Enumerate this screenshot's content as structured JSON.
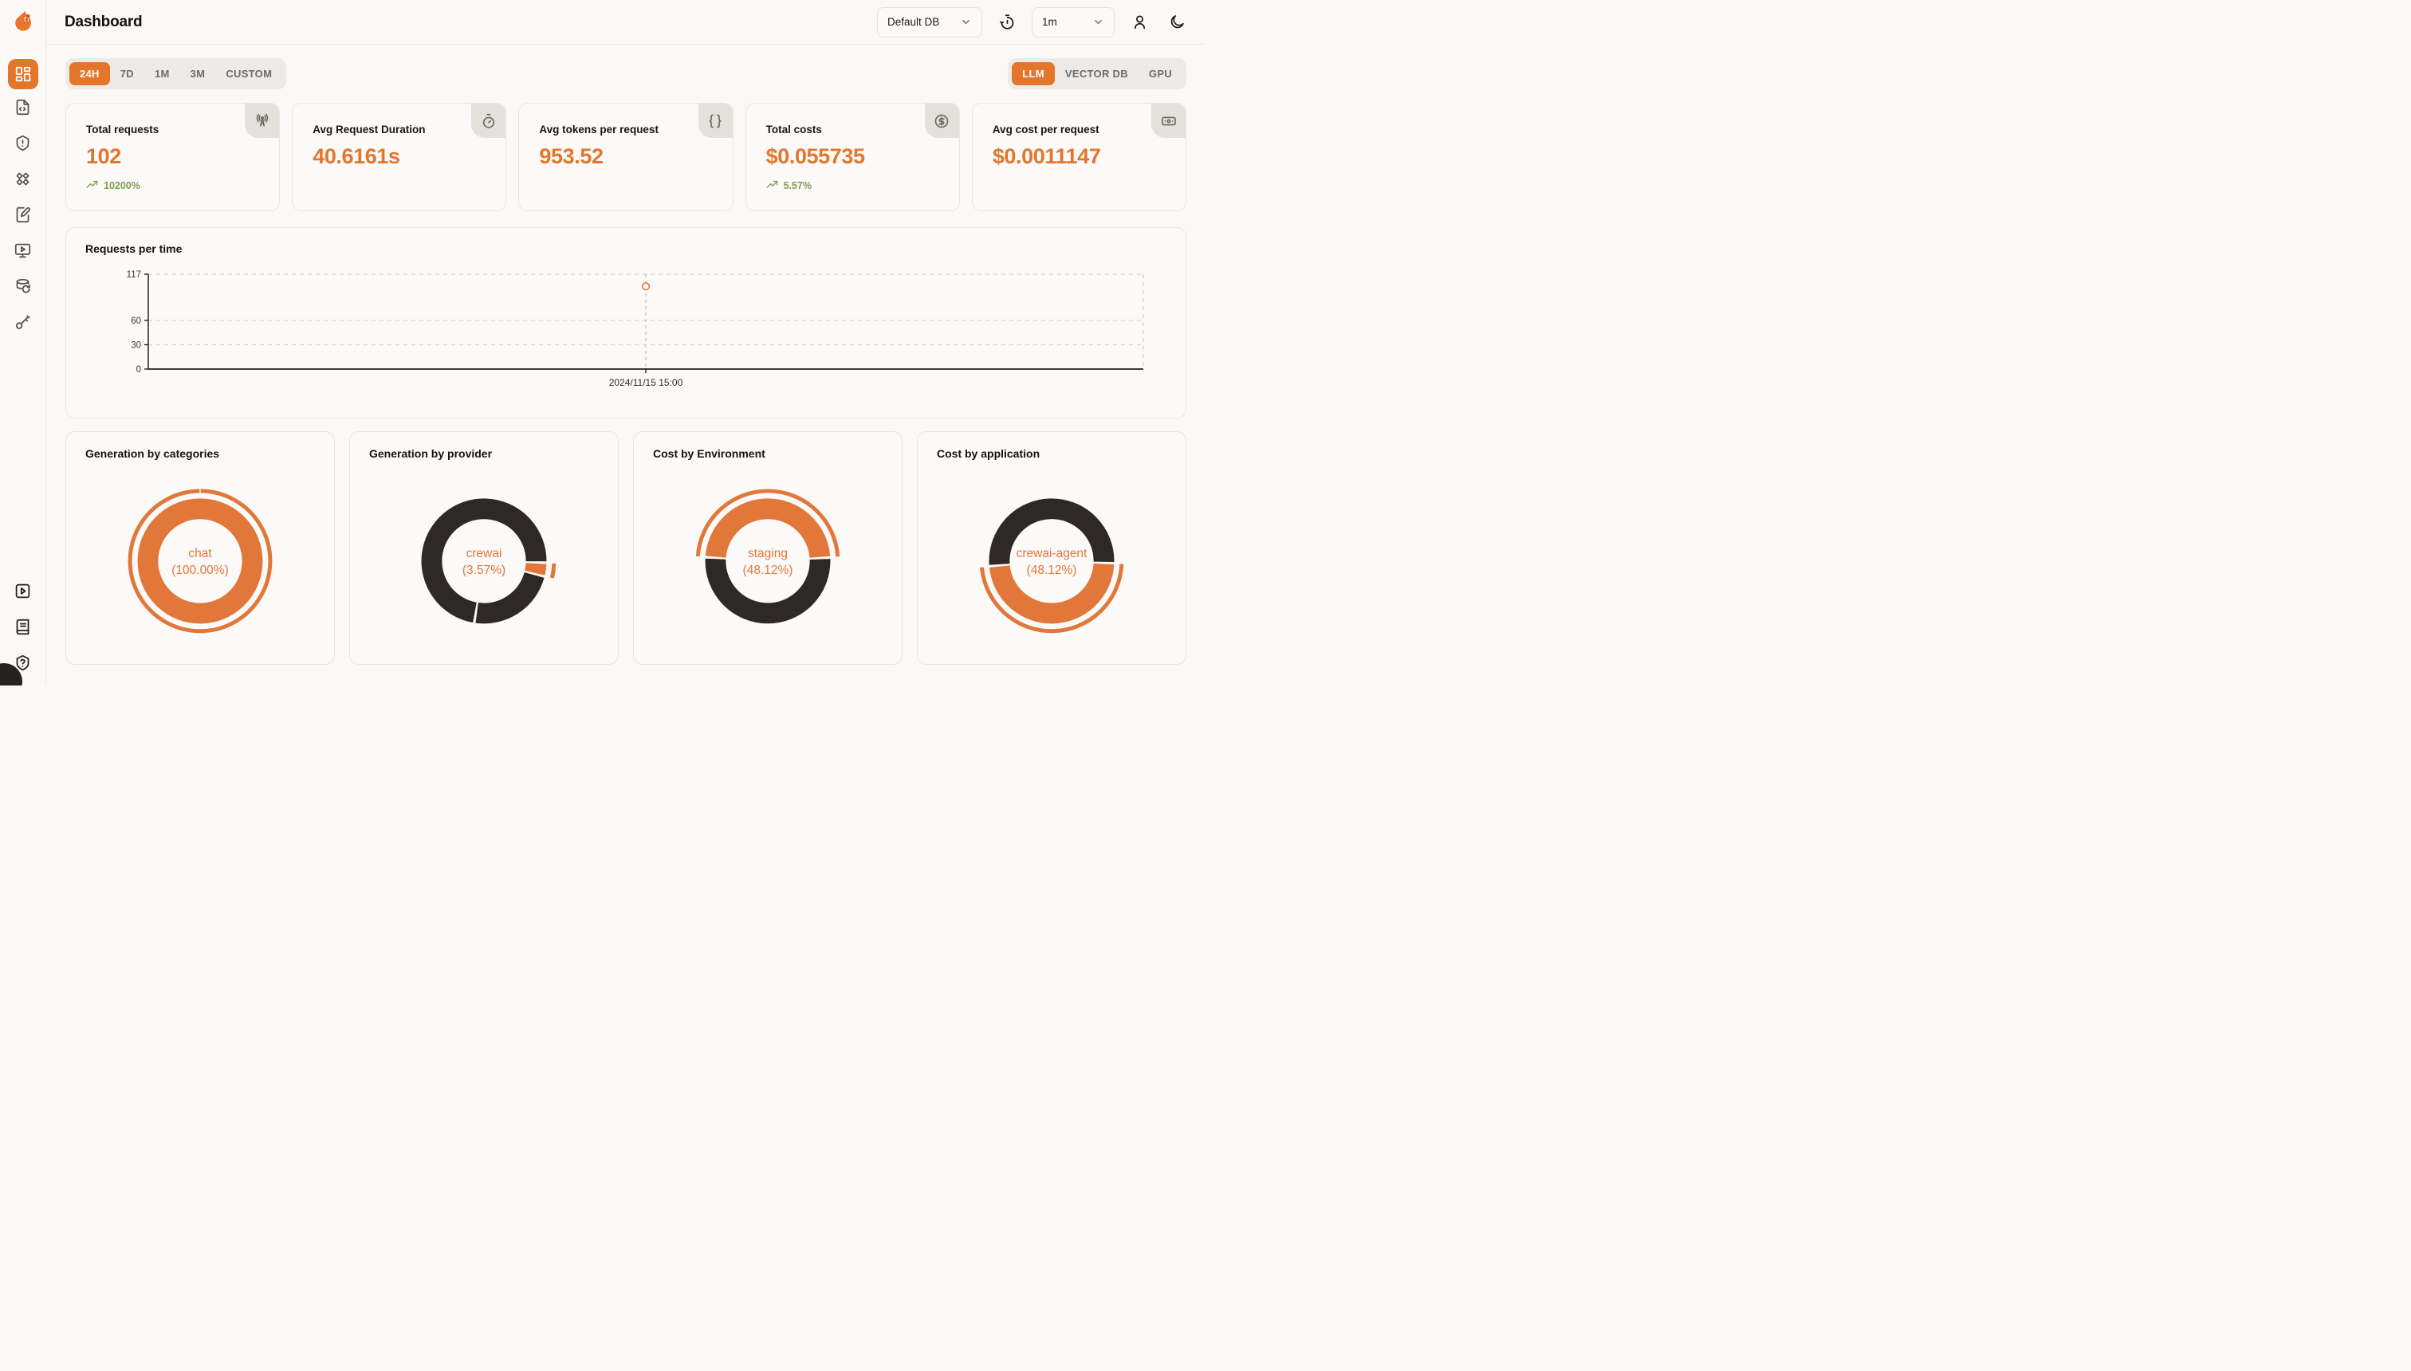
{
  "colors": {
    "accent": "#e4762c",
    "chart_orange": "#e2773a",
    "chart_dark": "#2e2927",
    "trend_green": "#7c9e4b"
  },
  "header": {
    "title": "Dashboard",
    "db_select": {
      "value": "Default DB"
    },
    "interval_select": {
      "value": "1m"
    }
  },
  "sidebar": {
    "top_items": [
      {
        "name": "dashboard",
        "icon": "layout-dashboard-icon",
        "active": true
      },
      {
        "name": "file-code",
        "icon": "file-code-icon",
        "active": false
      },
      {
        "name": "shield-alert",
        "icon": "shield-alert-icon",
        "active": false
      },
      {
        "name": "diamonds",
        "icon": "diamonds-icon",
        "active": false
      },
      {
        "name": "notebook-pen",
        "icon": "notebook-pen-icon",
        "active": false
      },
      {
        "name": "monitor-play",
        "icon": "monitor-play-icon",
        "active": false
      },
      {
        "name": "database-backup",
        "icon": "database-backup-icon",
        "active": false
      },
      {
        "name": "key",
        "icon": "key-icon",
        "active": false
      }
    ],
    "bottom_items": [
      {
        "name": "square-play",
        "icon": "square-play-icon"
      },
      {
        "name": "book",
        "icon": "book-icon"
      },
      {
        "name": "shield-question",
        "icon": "shield-question-icon"
      }
    ]
  },
  "filters": {
    "time_ranges": [
      "24H",
      "7D",
      "1M",
      "3M",
      "CUSTOM"
    ],
    "active_time_range": "24H",
    "modes": [
      "LLM",
      "VECTOR DB",
      "GPU"
    ],
    "active_mode": "LLM"
  },
  "stats": [
    {
      "label": "Total requests",
      "value": "102",
      "trend": "10200%",
      "icon": "radio-tower-icon"
    },
    {
      "label": "Avg Request Duration",
      "value": "40.6161s",
      "trend": null,
      "icon": "stopwatch-icon"
    },
    {
      "label": "Avg tokens per request",
      "value": "953.52",
      "trend": null,
      "icon": "braces-icon"
    },
    {
      "label": "Total costs",
      "value": "$0.055735",
      "trend": "5.57%",
      "icon": "circle-dollar-icon"
    },
    {
      "label": "Avg cost per request",
      "value": "$0.0011147",
      "trend": null,
      "icon": "banknote-icon"
    }
  ],
  "chart_data": [
    {
      "type": "line",
      "title": "Requests per time",
      "x": [
        "2024/11/15 15:00"
      ],
      "series": [
        {
          "name": "requests",
          "values": [
            102
          ]
        }
      ],
      "ylim": [
        0,
        117
      ],
      "yticks": [
        0,
        30,
        60,
        117
      ],
      "x_fraction": 0.5,
      "grid": "dashed"
    },
    {
      "type": "pie",
      "title": "Generation by categories",
      "center": [
        "chat",
        "(100.00%)"
      ],
      "slices": [
        {
          "label": "chat",
          "percent": 100.0,
          "color": "accent",
          "start": 0,
          "highlight": true
        }
      ]
    },
    {
      "type": "pie",
      "title": "Generation by provider",
      "center": [
        "crewai",
        "(3.57%)"
      ],
      "slices": [
        {
          "label": "crewai",
          "percent": 3.57,
          "color": "accent",
          "start": 91.5,
          "highlight": true
        },
        {
          "label": "other",
          "percent": 23.5,
          "color": "dark",
          "start": 104.35,
          "highlight": false
        },
        {
          "label": "other",
          "percent": 72.93,
          "color": "dark",
          "start": 188.95,
          "highlight": false
        }
      ]
    },
    {
      "type": "pie",
      "title": "Cost by Environment",
      "center": [
        "staging",
        "(48.12%)"
      ],
      "slices": [
        {
          "label": "staging",
          "percent": 48.12,
          "color": "accent",
          "start": 273.5,
          "highlight": true
        },
        {
          "label": "other",
          "percent": 51.88,
          "color": "dark",
          "start": 86.73,
          "highlight": false
        }
      ]
    },
    {
      "type": "pie",
      "title": "Cost by application",
      "center": [
        "crewai-agent",
        "(48.12%)"
      ],
      "slices": [
        {
          "label": "crewai-agent",
          "percent": 48.12,
          "color": "accent",
          "start": 92,
          "highlight": true
        },
        {
          "label": "other",
          "percent": 51.88,
          "color": "dark",
          "start": 265.23,
          "highlight": false
        }
      ]
    }
  ]
}
